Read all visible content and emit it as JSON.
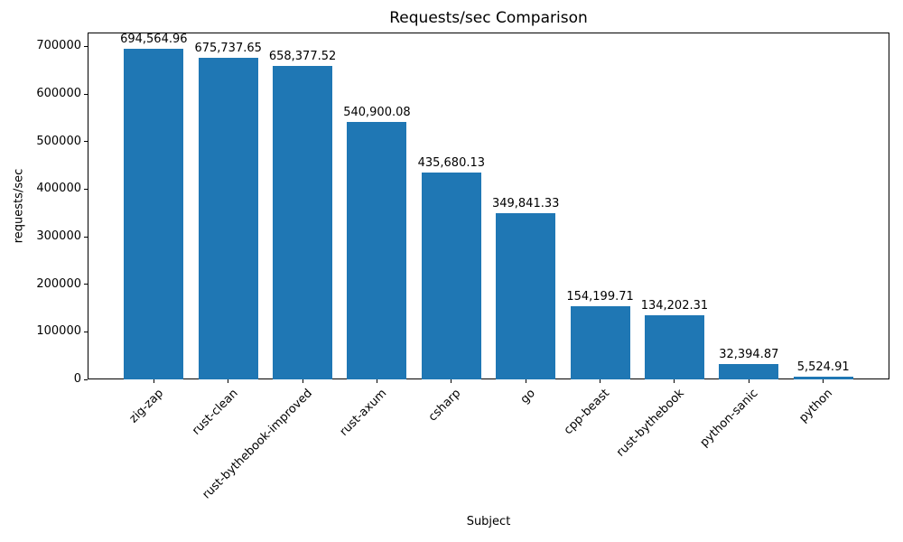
{
  "chart_data": {
    "type": "bar",
    "title": "Requests/sec Comparison",
    "xlabel": "Subject",
    "ylabel": "requests/sec",
    "categories": [
      "zig-zap",
      "rust-clean",
      "rust-bythebook-improved",
      "rust-axum",
      "csharp",
      "go",
      "cpp-beast",
      "rust-bythebook",
      "python-sanic",
      "python"
    ],
    "values": [
      694564.96,
      675737.65,
      658377.52,
      540900.08,
      435680.13,
      349841.33,
      154199.71,
      134202.31,
      32394.87,
      5524.91
    ],
    "value_labels": [
      "694,564.96",
      "675,737.65",
      "658,377.52",
      "540,900.08",
      "435,680.13",
      "349,841.33",
      "154,199.71",
      "134,202.31",
      "32,394.87",
      "5,524.91"
    ],
    "yticks": [
      0,
      100000,
      200000,
      300000,
      400000,
      500000,
      600000,
      700000
    ],
    "ylim": [
      0,
      729293
    ],
    "bar_color": "#1f77b4",
    "grid": false,
    "legend": "none",
    "xtick_rotation_deg": 45
  }
}
